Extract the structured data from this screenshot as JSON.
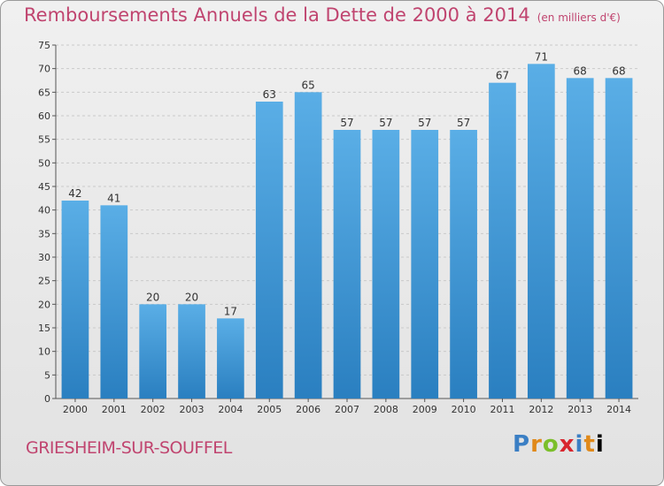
{
  "header": {
    "title": "Remboursements Annuels de la Dette de 2000 à 2014",
    "subtitle": "(en milliers d'€)"
  },
  "footer": {
    "city": "GRIESHEIM-SUR-SOUFFEL",
    "logo": "Proxiti"
  },
  "colors": {
    "bar_top": "#5aaee6",
    "bar_bottom": "#2a7fc0",
    "title": "#c0446f"
  },
  "chart_data": {
    "type": "bar",
    "title": "Remboursements Annuels de la Dette de 2000 à 2014",
    "xlabel": "",
    "ylabel": "",
    "categories": [
      "2000",
      "2001",
      "2002",
      "2003",
      "2004",
      "2005",
      "2006",
      "2007",
      "2008",
      "2009",
      "2010",
      "2011",
      "2012",
      "2013",
      "2014"
    ],
    "values": [
      42,
      41,
      20,
      20,
      17,
      63,
      65,
      57,
      57,
      57,
      57,
      67,
      71,
      68,
      68
    ],
    "ylim": [
      0,
      75
    ],
    "yticks": [
      0,
      5,
      10,
      15,
      20,
      25,
      30,
      35,
      40,
      45,
      50,
      55,
      60,
      65,
      70,
      75
    ],
    "grid": true
  }
}
